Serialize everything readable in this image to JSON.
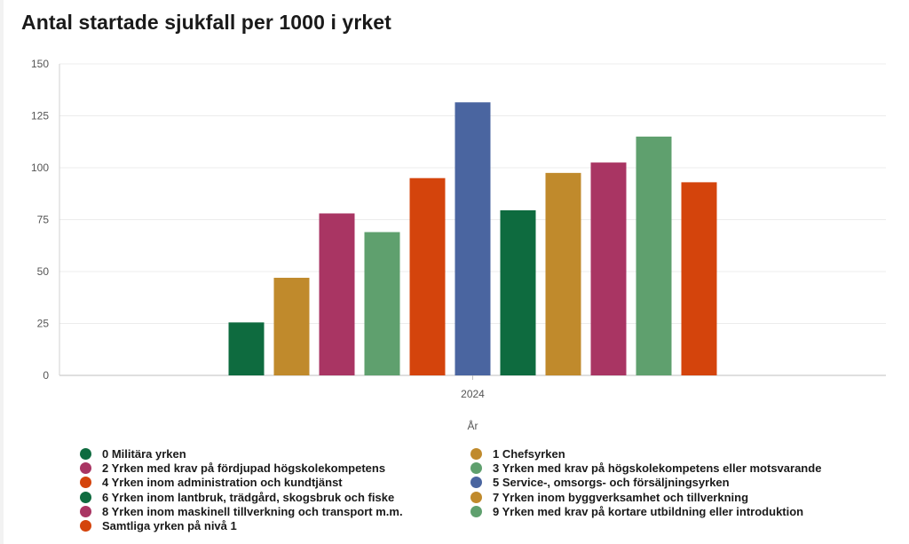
{
  "chart_data": {
    "type": "bar",
    "title": "Antal startade sjukfall per 1000 i yrket",
    "xlabel": "År",
    "ylabel": "",
    "categories": [
      "2024"
    ],
    "ylim": [
      0,
      150
    ],
    "yticks": [
      0,
      25,
      50,
      75,
      100,
      125,
      150
    ],
    "grid": true,
    "legend_position": "bottom",
    "series": [
      {
        "name": "0 Militära yrken",
        "values": [
          25.5
        ],
        "color": "#0e6b3f"
      },
      {
        "name": "1 Chefsyrken",
        "values": [
          47
        ],
        "color": "#c08a2c"
      },
      {
        "name": "2 Yrken med krav på fördjupad högskolekompetens",
        "values": [
          78
        ],
        "color": "#a93563"
      },
      {
        "name": "3 Yrken med krav på högskolekompetens eller motsvarande",
        "values": [
          69
        ],
        "color": "#5fa06e"
      },
      {
        "name": "4 Yrken inom administration och kundtjänst",
        "values": [
          95
        ],
        "color": "#d4440c"
      },
      {
        "name": "5 Service-, omsorgs- och försäljningsyrken",
        "values": [
          131.5
        ],
        "color": "#4a65a0"
      },
      {
        "name": "6 Yrken inom lantbruk, trädgård, skogsbruk och fiske",
        "values": [
          79.5
        ],
        "color": "#0e6b3f"
      },
      {
        "name": "7 Yrken inom byggverksamhet och tillverkning",
        "values": [
          97.5
        ],
        "color": "#c08a2c"
      },
      {
        "name": "8 Yrken inom maskinell tillverkning och transport m.m.",
        "values": [
          102.5
        ],
        "color": "#a93563"
      },
      {
        "name": "9 Yrken med krav på kortare utbildning eller introduktion",
        "values": [
          115
        ],
        "color": "#5fa06e"
      },
      {
        "name": "Samtliga yrken på nivå 1",
        "values": [
          93
        ],
        "color": "#d4440c"
      }
    ]
  }
}
